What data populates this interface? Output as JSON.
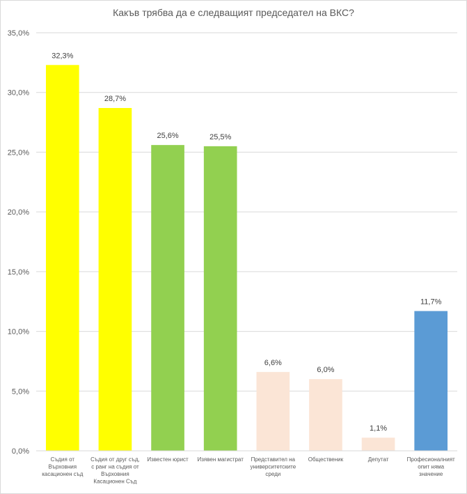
{
  "chart_data": {
    "type": "bar",
    "title": "Какъв трябва да е следващият председател на ВКС?",
    "xlabel": "",
    "ylabel": "",
    "ylim": [
      0,
      35
    ],
    "yticks": [
      "0,0%",
      "5,0%",
      "10,0%",
      "15,0%",
      "20,0%",
      "25,0%",
      "30,0%",
      "35,0%"
    ],
    "grid": true,
    "legend": "none",
    "categories": [
      "Съдия от Върховния касационен съд",
      "Съдия от друг съд, с ранг на съдия от Върховния Касационен Съд",
      "Известен юрист",
      "Изявен магистрат",
      "Представител на университетските среди",
      "Общественик",
      "Депутат",
      "Професионалният опит няма значение"
    ],
    "category_lines": [
      [
        "Съдия от",
        "Върховния",
        "касационен съд"
      ],
      [
        "Съдия от друг съд,",
        "с ранг на съдия от",
        "Върховния",
        "Касационен Съд"
      ],
      [
        "Известен юрист"
      ],
      [
        "Изявен магистрат"
      ],
      [
        "Представител на",
        "университетските",
        "среди"
      ],
      [
        "Общественик"
      ],
      [
        "Депутат"
      ],
      [
        "Професионалният",
        "опит няма",
        "значение"
      ]
    ],
    "values": [
      32.3,
      28.7,
      25.6,
      25.5,
      6.6,
      6.0,
      1.1,
      11.7
    ],
    "value_labels": [
      "32,3%",
      "28,7%",
      "25,6%",
      "25,5%",
      "6,6%",
      "6,0%",
      "1,1%",
      "11,7%"
    ],
    "colors": [
      "#ffff00",
      "#ffff00",
      "#92d050",
      "#92d050",
      "#fbe5d6",
      "#fbe5d6",
      "#fbe5d6",
      "#5b9bd5"
    ],
    "gridline_color": "#d9d9d9"
  }
}
